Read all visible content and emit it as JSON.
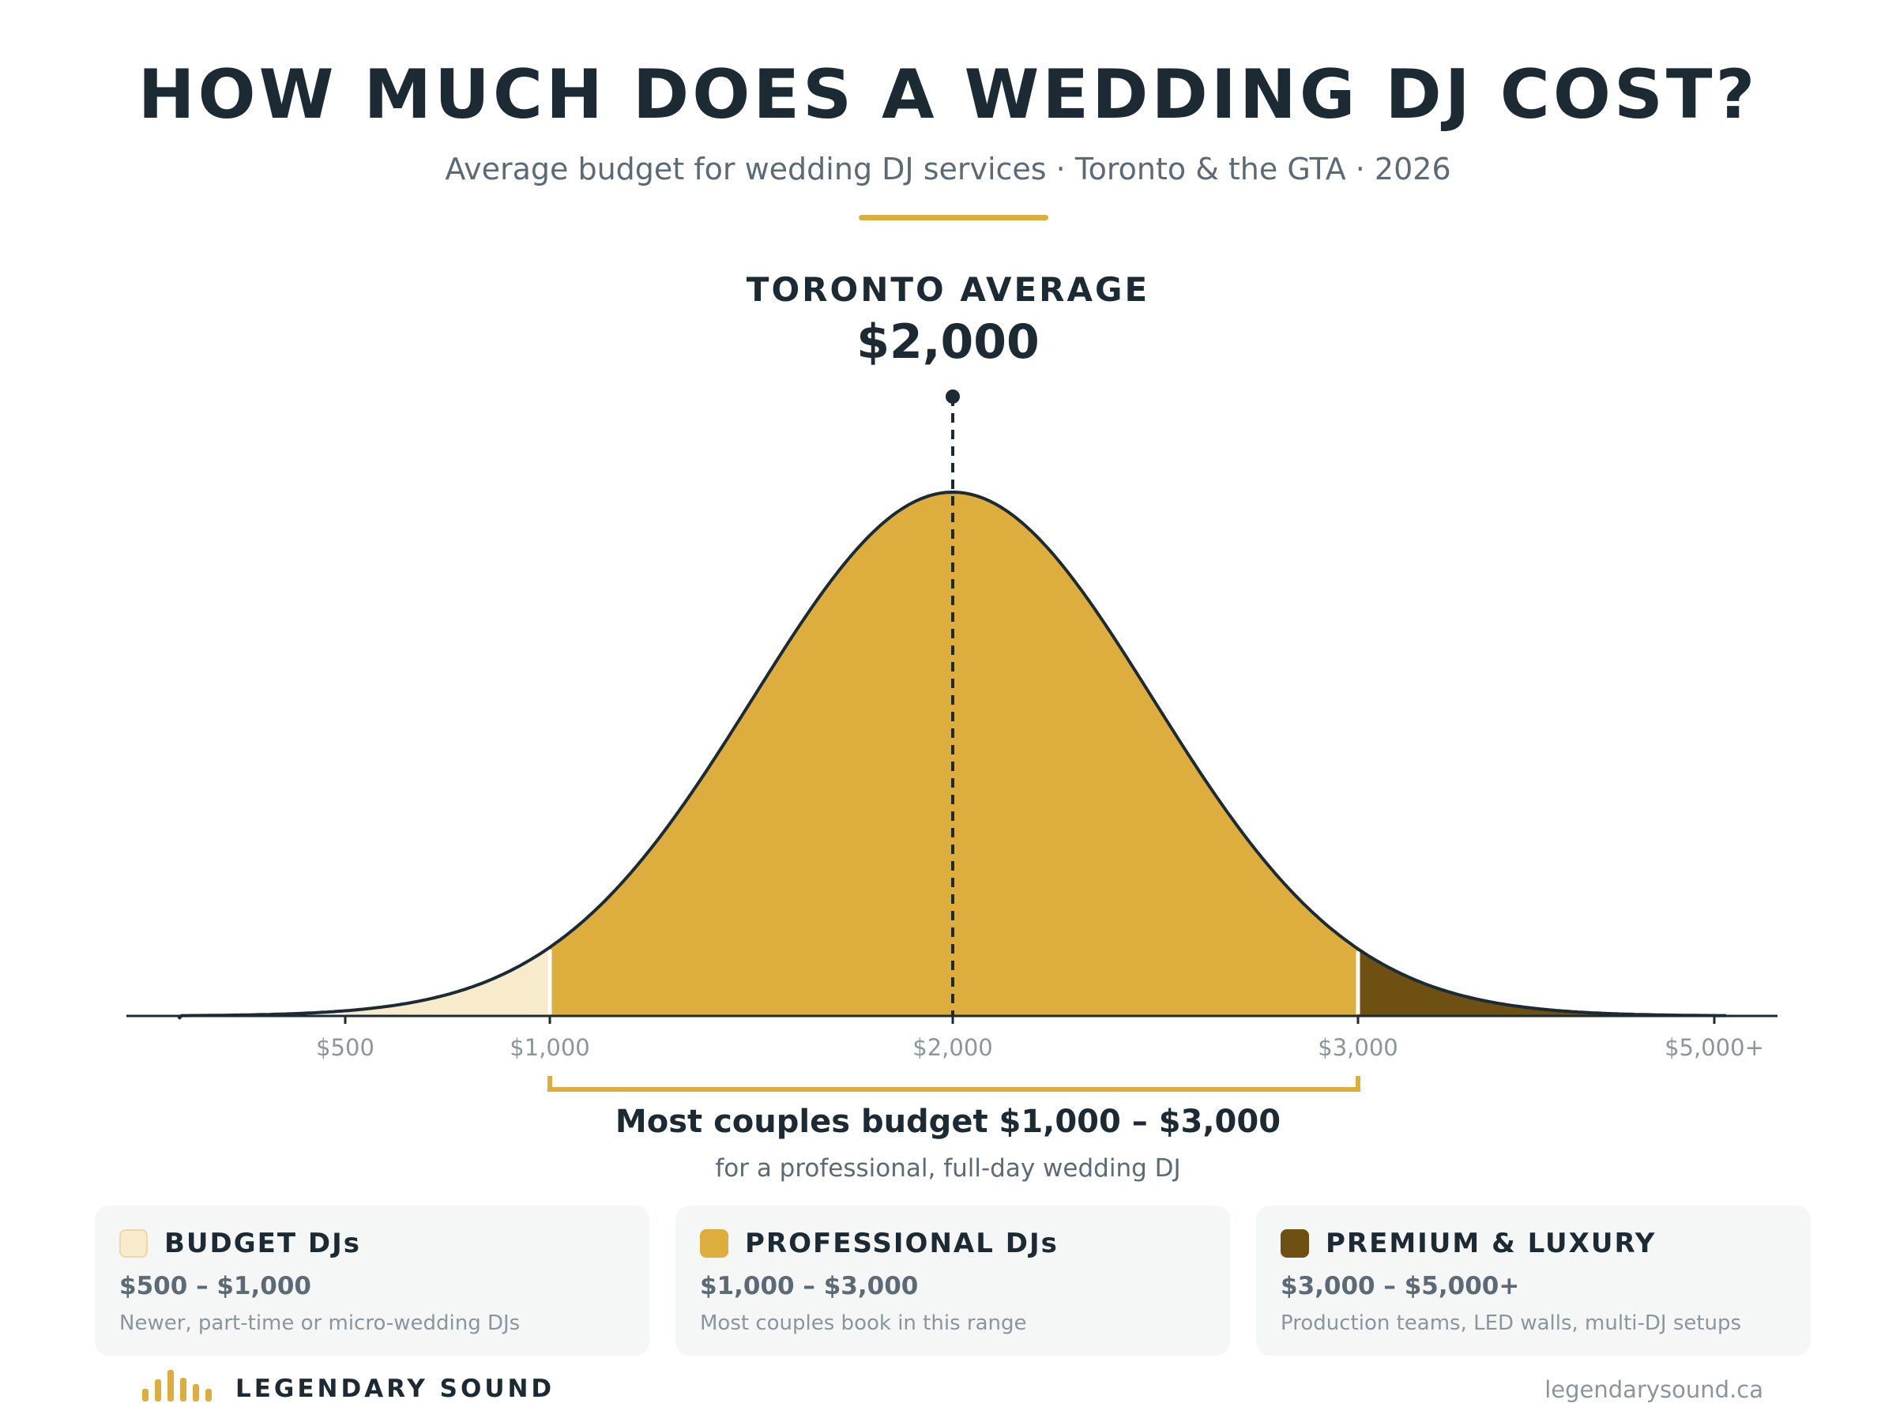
{
  "header": {
    "title": "HOW MUCH DOES A WEDDING DJ COST?",
    "subtitle": "Average budget for wedding DJ services · Toronto & the GTA · 2026"
  },
  "colors": {
    "dark": "#1b2a33",
    "budget": "#f7ebcb",
    "professional": "#ddad3d",
    "premium": "#6e5012",
    "accent": "#ddad3d",
    "muted": "#8a969d"
  },
  "chart_data": {
    "type": "area",
    "distribution": "normal",
    "mean": 2000,
    "mean_label": "TORONTO AVERAGE",
    "mean_value_label": "$2,000",
    "x_ticks": [
      {
        "value": 500,
        "label": "$500"
      },
      {
        "value": 1000,
        "label": "$1,000"
      },
      {
        "value": 2000,
        "label": "$2,000"
      },
      {
        "value": 3000,
        "label": "$3,000"
      },
      {
        "value": 5000,
        "label": "$5,000+"
      }
    ],
    "segments": [
      {
        "name": "BUDGET DJs",
        "from": 500,
        "to": 1000,
        "color": "#f7ebcb"
      },
      {
        "name": "PROFESSIONAL DJs",
        "from": 1000,
        "to": 3000,
        "color": "#ddad3d"
      },
      {
        "name": "PREMIUM & LUXURY",
        "from": 3000,
        "to": 5000,
        "color": "#6e5012"
      }
    ],
    "bracket": {
      "from": 1000,
      "to": 3000
    },
    "grid": false,
    "legend": "bottom"
  },
  "range_note": {
    "main": "Most couples budget $1,000 – $3,000",
    "sub": "for a professional, full-day wedding DJ"
  },
  "cards": [
    {
      "title": "BUDGET DJs",
      "range": "$500 – $1,000",
      "desc": "Newer, part-time or micro-wedding DJs",
      "color": "#f7ebcb"
    },
    {
      "title": "PROFESSIONAL DJs",
      "range": "$1,000 – $3,000",
      "desc": "Most couples book in this range",
      "color": "#ddad3d"
    },
    {
      "title": "PREMIUM & LUXURY",
      "range": "$3,000 – $5,000+",
      "desc": "Production teams, LED walls, multi-DJ setups",
      "color": "#6e5012"
    }
  ],
  "footer": {
    "logo_icon": "equalizer-bars-icon",
    "brand": "LEGENDARY SOUND",
    "url": "legendarysound.ca"
  }
}
